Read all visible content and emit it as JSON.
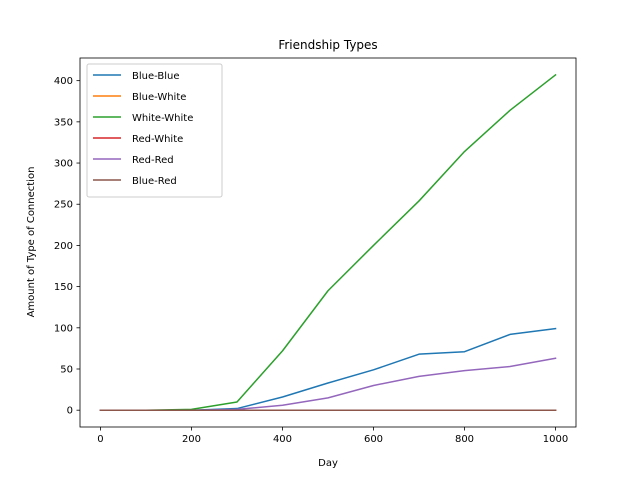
{
  "chart_data": {
    "type": "line",
    "title": "Friendship Types",
    "xlabel": "Day",
    "ylabel": "Amount of Type of Connection",
    "xlim": [
      -45,
      1045
    ],
    "ylim": [
      -20.4,
      427.5
    ],
    "xticks": [
      0,
      200,
      400,
      600,
      800,
      1000
    ],
    "yticks": [
      0,
      50,
      100,
      150,
      200,
      250,
      300,
      350,
      400
    ],
    "x": [
      0,
      100,
      200,
      300,
      400,
      500,
      600,
      700,
      800,
      900,
      1000
    ],
    "legend_position": "upper-left",
    "grid": false,
    "series": [
      {
        "name": "Blue-Blue",
        "color": "#1f77b4",
        "values": [
          0,
          0,
          0,
          2,
          16,
          33,
          49,
          68,
          71,
          92,
          99
        ]
      },
      {
        "name": "Blue-White",
        "color": "#ff7f0e",
        "values": [
          0,
          0,
          0,
          0,
          0,
          0,
          0,
          0,
          0,
          0,
          0
        ]
      },
      {
        "name": "White-White",
        "color": "#2ca02c",
        "values": [
          0,
          0,
          1,
          10,
          72,
          145,
          200,
          254,
          314,
          364,
          407
        ]
      },
      {
        "name": "Red-White",
        "color": "#d62728",
        "values": [
          0,
          0,
          0,
          0,
          0,
          0,
          0,
          0,
          0,
          0,
          0
        ]
      },
      {
        "name": "Red-Red",
        "color": "#9467bd",
        "values": [
          0,
          0,
          0,
          1,
          6,
          15,
          30,
          41,
          48,
          53,
          63
        ]
      },
      {
        "name": "Blue-Red",
        "color": "#8c564b",
        "values": [
          0,
          0,
          0,
          0,
          0,
          0,
          0,
          0,
          0,
          0,
          0
        ]
      }
    ]
  }
}
